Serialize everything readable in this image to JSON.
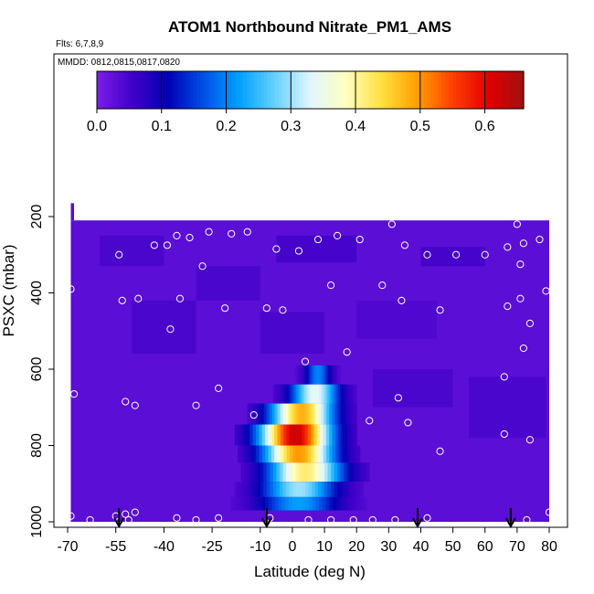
{
  "chart_data": {
    "type": "heatmap",
    "title": "ATOM1 Northbound Nitrate_PM1_AMS",
    "flights_note": "Flts: 6,7,8,9",
    "dates_note": "MMDD: 0812,0815,0817,0820",
    "xlabel": "Latitude (deg N)",
    "ylabel": "PSXC (mbar)",
    "xlim": [
      -70,
      80
    ],
    "ylim": [
      1000,
      100
    ],
    "x_ticks": [
      -70,
      -55,
      -40,
      -25,
      -10,
      0,
      10,
      20,
      30,
      40,
      50,
      60,
      70,
      80
    ],
    "x_tick_labels": [
      "-70",
      "-55",
      "-40",
      "-25",
      "-10",
      "0",
      "10",
      "20",
      "30",
      "40",
      "50",
      "60",
      "70",
      "80"
    ],
    "y_ticks": [
      200,
      400,
      600,
      800,
      1000
    ],
    "y_tick_labels": [
      "200",
      "400",
      "600",
      "800",
      "1000"
    ],
    "colorbar": {
      "range": [
        0,
        0.66
      ],
      "ticks": [
        0.0,
        0.1,
        0.2,
        0.3,
        0.4,
        0.5,
        0.6
      ],
      "tick_labels": [
        "0.0",
        "0.1",
        "0.2",
        "0.3",
        "0.4",
        "0.5",
        "0.6"
      ],
      "colors": [
        "#7b1fe6",
        "#4000c8",
        "#0000b4",
        "#0050e6",
        "#00a0ff",
        "#66d0ff",
        "#e0f6ff",
        "#ffffc0",
        "#ffe040",
        "#ffa000",
        "#ff4000",
        "#e00000",
        "#a01010"
      ]
    },
    "background_value": 0.03,
    "field_extent": {
      "lat": [
        -69,
        80
      ],
      "pressure_top": 210,
      "pressure_bottom": 1000
    },
    "plume": [
      {
        "p_top": 590,
        "p_bottom": 640,
        "lat_center": 8,
        "half_width": 7,
        "peak": 0.2
      },
      {
        "p_top": 640,
        "p_bottom": 690,
        "lat_center": 7,
        "half_width": 13,
        "peak": 0.34
      },
      {
        "p_top": 690,
        "p_bottom": 745,
        "lat_center": 3,
        "half_width": 17,
        "peak": 0.48
      },
      {
        "p_top": 745,
        "p_bottom": 800,
        "lat_center": 1,
        "half_width": 19,
        "peak": 0.62
      },
      {
        "p_top": 800,
        "p_bottom": 845,
        "lat_center": 2,
        "half_width": 19,
        "peak": 0.5
      },
      {
        "p_top": 845,
        "p_bottom": 895,
        "lat_center": 4,
        "half_width": 20,
        "peak": 0.42
      },
      {
        "p_top": 895,
        "p_bottom": 935,
        "lat_center": 2,
        "half_width": 20,
        "peak": 0.3
      },
      {
        "p_top": 935,
        "p_bottom": 970,
        "lat_center": 2,
        "half_width": 21,
        "peak": 0.22
      }
    ],
    "sample_points": [
      [
        -69,
        390
      ],
      [
        -68,
        665
      ],
      [
        -69,
        985
      ],
      [
        -63,
        995
      ],
      [
        -55,
        985
      ],
      [
        -52,
        980
      ],
      [
        -51,
        995
      ],
      [
        -49,
        975
      ],
      [
        -54,
        300
      ],
      [
        -53,
        420
      ],
      [
        -52,
        685
      ],
      [
        -49,
        695
      ],
      [
        -48,
        415
      ],
      [
        -43,
        275
      ],
      [
        -39,
        275
      ],
      [
        -38,
        495
      ],
      [
        -36,
        250
      ],
      [
        -36,
        990
      ],
      [
        -35,
        415
      ],
      [
        -32,
        255
      ],
      [
        -30,
        695
      ],
      [
        -30,
        995
      ],
      [
        -28,
        330
      ],
      [
        -26,
        240
      ],
      [
        -23,
        650
      ],
      [
        -23,
        990
      ],
      [
        -21,
        440
      ],
      [
        -19,
        245
      ],
      [
        -14,
        240
      ],
      [
        -12,
        720
      ],
      [
        -8,
        440
      ],
      [
        -7,
        990
      ],
      [
        -5,
        285
      ],
      [
        -3,
        445
      ],
      [
        2,
        290
      ],
      [
        4,
        580
      ],
      [
        5,
        995
      ],
      [
        8,
        260
      ],
      [
        12,
        380
      ],
      [
        12,
        995
      ],
      [
        14,
        250
      ],
      [
        17,
        555
      ],
      [
        19,
        995
      ],
      [
        21,
        260
      ],
      [
        24,
        735
      ],
      [
        25,
        995
      ],
      [
        28,
        380
      ],
      [
        31,
        220
      ],
      [
        32,
        995
      ],
      [
        33,
        675
      ],
      [
        34,
        420
      ],
      [
        35,
        275
      ],
      [
        36,
        740
      ],
      [
        42,
        990
      ],
      [
        42,
        300
      ],
      [
        46,
        445
      ],
      [
        46,
        815
      ],
      [
        51,
        300
      ],
      [
        60,
        300
      ],
      [
        66,
        620
      ],
      [
        66,
        770
      ],
      [
        67,
        435
      ],
      [
        67,
        280
      ],
      [
        70,
        220
      ],
      [
        71,
        415
      ],
      [
        71,
        325
      ],
      [
        72,
        270
      ],
      [
        72,
        545
      ],
      [
        73,
        995
      ],
      [
        74,
        480
      ],
      [
        74,
        785
      ],
      [
        77,
        260
      ],
      [
        79,
        395
      ],
      [
        80,
        975
      ]
    ],
    "flight_arrows_lat": [
      -54,
      -8,
      39,
      68
    ]
  }
}
